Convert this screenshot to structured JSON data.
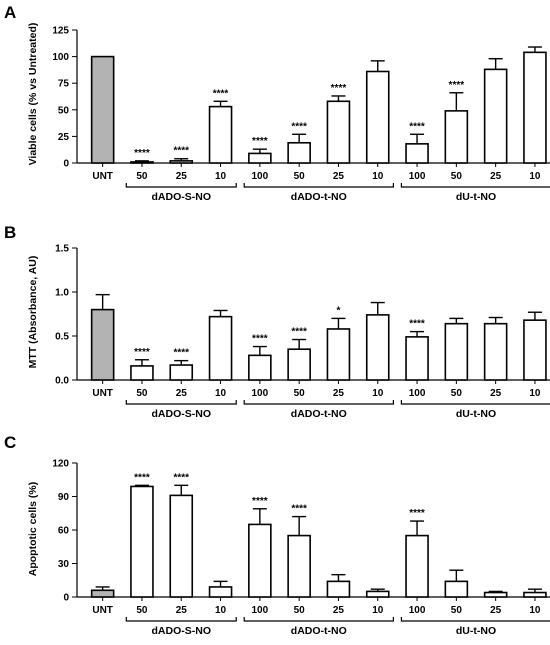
{
  "categories": [
    "UNT",
    "50",
    "25",
    "10",
    "100",
    "50",
    "25",
    "10",
    "100",
    "50",
    "25",
    "10"
  ],
  "groups": [
    {
      "label": "dADO-S-NO",
      "from": 1,
      "to": 3
    },
    {
      "label": "dADO-t-NO",
      "from": 4,
      "to": 7
    },
    {
      "label": "dU-t-NO",
      "from": 8,
      "to": 11
    }
  ],
  "colors": {
    "control_fill": "#b3b3b3",
    "treated_fill": "#ffffff",
    "stroke": "#000000"
  },
  "chart_data": [
    {
      "panel": "A",
      "type": "bar",
      "ylabel": "Viable cells (% vs Untreated)",
      "ylim": [
        0,
        125
      ],
      "yticks": [
        0,
        25,
        50,
        75,
        100,
        125
      ],
      "tick_labels": [
        "0",
        "25",
        "50",
        "75",
        "100",
        "125"
      ],
      "values": [
        100,
        1,
        2,
        53,
        9,
        19,
        58,
        86,
        18,
        49,
        88,
        104
      ],
      "errors": [
        0,
        1,
        2,
        5,
        4,
        8,
        5,
        10,
        9,
        17,
        10,
        5
      ],
      "significance": [
        "",
        "****",
        "****",
        "****",
        "****",
        "****",
        "****",
        "",
        "****",
        "****",
        "",
        ""
      ]
    },
    {
      "panel": "B",
      "type": "bar",
      "ylabel": "MTT (Absorbance, AU)",
      "ylim": [
        0,
        1.5
      ],
      "yticks": [
        0,
        0.5,
        1.0,
        1.5
      ],
      "tick_labels": [
        "0.0",
        "0.5",
        "1.0",
        "1.5"
      ],
      "values": [
        0.8,
        0.16,
        0.17,
        0.72,
        0.28,
        0.35,
        0.58,
        0.74,
        0.49,
        0.64,
        0.64,
        0.68
      ],
      "errors": [
        0.17,
        0.07,
        0.05,
        0.07,
        0.1,
        0.11,
        0.12,
        0.14,
        0.06,
        0.06,
        0.07,
        0.09
      ],
      "significance": [
        "",
        "****",
        "****",
        "",
        "****",
        "****",
        "*",
        "",
        "****",
        "",
        "",
        ""
      ]
    },
    {
      "panel": "C",
      "type": "bar",
      "ylabel": "Apoptotic cells (%)",
      "ylim": [
        0,
        120
      ],
      "yticks": [
        0,
        30,
        60,
        90,
        120
      ],
      "tick_labels": [
        "0",
        "30",
        "60",
        "90",
        "120"
      ],
      "values": [
        6,
        99,
        91,
        9,
        65,
        55,
        14,
        5,
        55,
        14,
        4,
        4
      ],
      "errors": [
        3,
        1,
        9,
        5,
        14,
        17,
        6,
        2,
        13,
        10,
        1,
        3
      ],
      "significance": [
        "",
        "****",
        "****",
        "",
        "****",
        "****",
        "",
        "",
        "****",
        "",
        "",
        ""
      ]
    }
  ]
}
